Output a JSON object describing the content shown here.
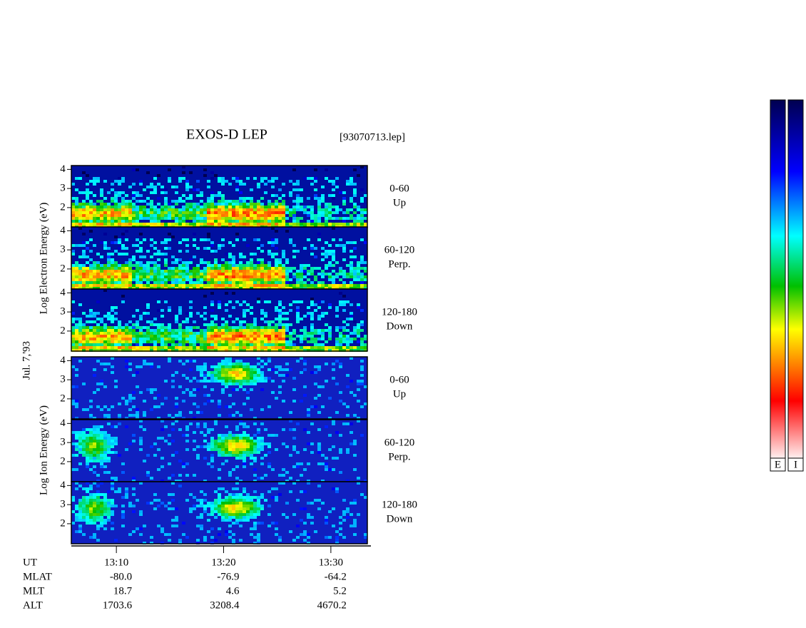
{
  "chart_data": {
    "type": "spectrogram",
    "title": "EXOS-D LEP",
    "file": "[93070713.lep]",
    "date": "Jul. 7,'93",
    "groups": [
      {
        "label": "Log Electron Energy (eV)",
        "panels": [
          {
            "angle": "0-60",
            "direction": "Up"
          },
          {
            "angle": "60-120",
            "direction": "Perp."
          },
          {
            "angle": "120-180",
            "direction": "Down"
          }
        ]
      },
      {
        "label": "Log Ion Energy (eV)",
        "panels": [
          {
            "angle": "0-60",
            "direction": "Up"
          },
          {
            "angle": "60-120",
            "direction": "Perp."
          },
          {
            "angle": "120-180",
            "direction": "Down"
          }
        ]
      }
    ],
    "ylim": [
      0.95,
      4.2
    ],
    "yticks": [
      2,
      3,
      4
    ],
    "xlim": [
      785.8,
      813.4
    ],
    "xticks": [
      {
        "value": 790,
        "label": "13:10"
      },
      {
        "value": 800,
        "label": "13:20"
      },
      {
        "value": 810,
        "label": "13:30"
      }
    ],
    "footer": [
      {
        "name": "MLAT",
        "values": [
          "-80.0",
          "-76.9",
          "-64.2"
        ]
      },
      {
        "name": "MLT",
        "values": [
          "18.7",
          "4.6",
          "5.2"
        ]
      },
      {
        "name": "ALT",
        "values": [
          "1703.6",
          "3208.4",
          "4670.2"
        ]
      }
    ],
    "x_label": "UT",
    "colorbars": [
      "E",
      "I"
    ]
  }
}
